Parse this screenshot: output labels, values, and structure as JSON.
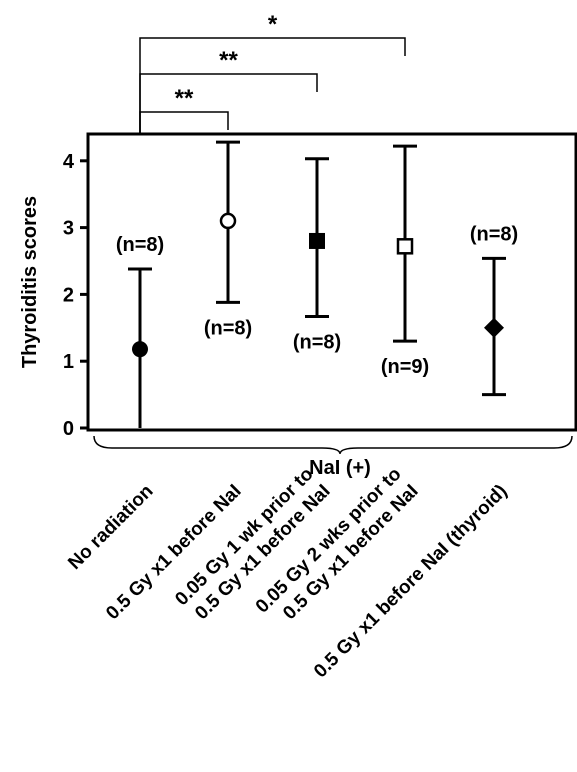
{
  "chart_data": {
    "type": "scatter",
    "ylabel": "Thyroiditis scores",
    "ylim": [
      0,
      4.4
    ],
    "yticks": [
      0,
      1,
      2,
      3,
      4
    ],
    "grid": false,
    "group_label": "NaI (+)",
    "categories": [
      [
        "No radiation"
      ],
      [
        "0.5 Gy x1 before NaI"
      ],
      [
        "0.05 Gy 1 wk prior to",
        "0.5 Gy x1 before NaI"
      ],
      [
        "0.05 Gy 2 wks prior to",
        "0.5 Gy x1 before NaI"
      ],
      [
        "0.5 Gy x1 before NaI (thyroid)"
      ]
    ],
    "series": [
      {
        "values": [
          1.18,
          3.1,
          2.8,
          2.72,
          1.5
        ],
        "err_low": [
          0.0,
          1.88,
          1.67,
          1.3,
          0.5
        ],
        "err_high": [
          2.38,
          4.28,
          4.03,
          4.22,
          2.54
        ],
        "markers": [
          "filled-circle",
          "open-circle",
          "filled-square",
          "open-square",
          "filled-diamond"
        ],
        "n_labels": [
          "(n=8)",
          "(n=8)",
          "(n=8)",
          "(n=9)",
          "(n=8)"
        ],
        "n_label_pos": [
          "above",
          "below",
          "below",
          "below",
          "above"
        ]
      }
    ],
    "significance": [
      {
        "from": 0,
        "to": 1,
        "label": "**"
      },
      {
        "from": 0,
        "to": 2,
        "label": "**"
      },
      {
        "from": 0,
        "to": 3,
        "label": "*"
      }
    ]
  }
}
